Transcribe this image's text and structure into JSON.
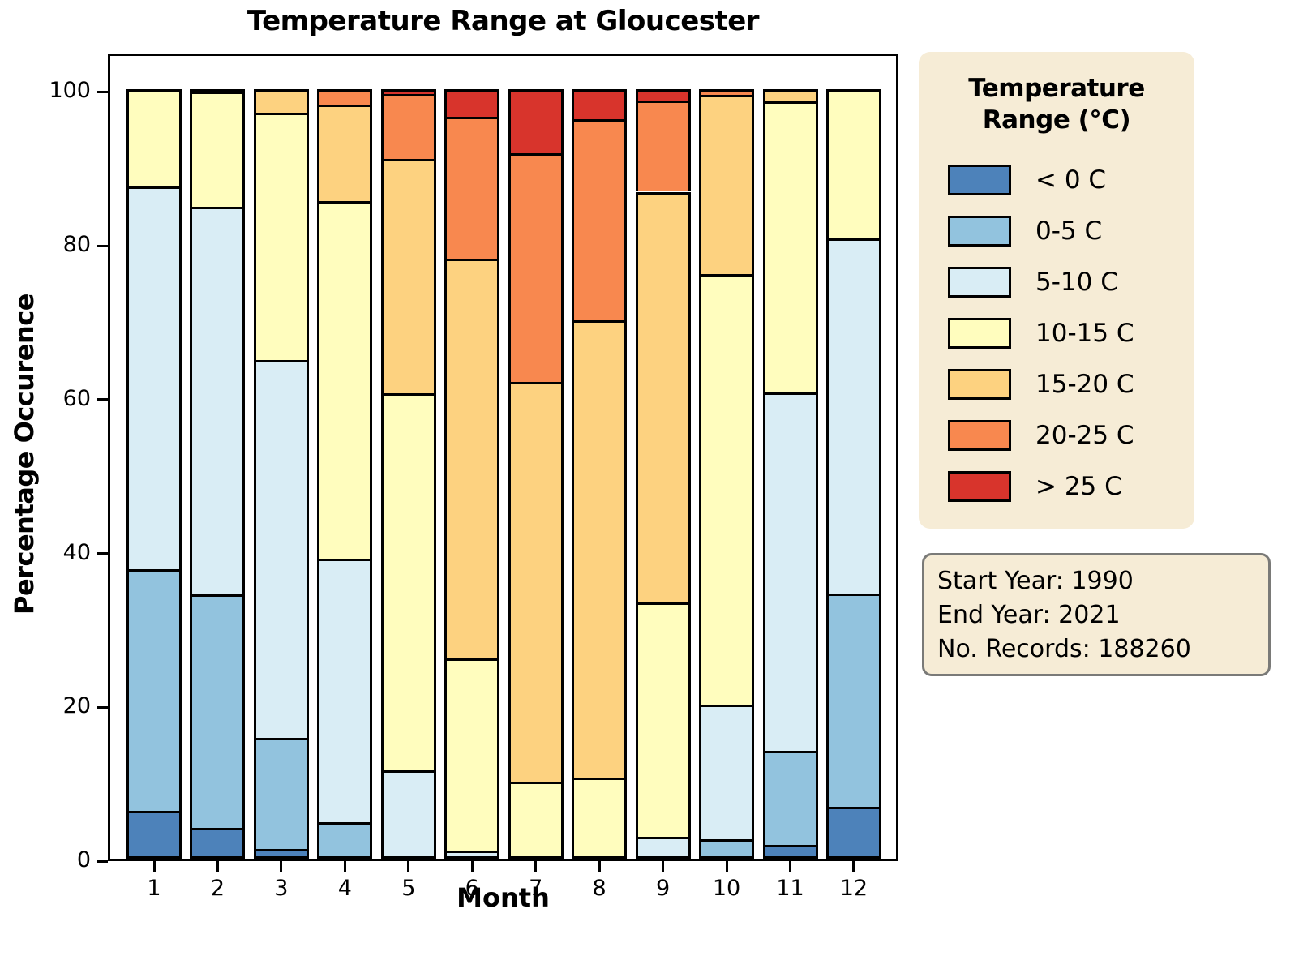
{
  "figure": {
    "background": "#ffffff",
    "box_background": "#f6ecd6",
    "edge_color": "#000000"
  },
  "chart_data": {
    "type": "bar",
    "stacked": true,
    "title": "Temperature Range at Gloucester",
    "xlabel": "Month",
    "ylabel": "Percentage Occurence",
    "ylim": [
      0,
      100
    ],
    "yticks": [
      0,
      20,
      40,
      60,
      80,
      100
    ],
    "grid": false,
    "legend_position": "right",
    "categories": [
      "1",
      "2",
      "3",
      "4",
      "5",
      "6",
      "7",
      "8",
      "9",
      "10",
      "11",
      "12"
    ],
    "series": [
      {
        "name": "< 0 C",
        "color": "#4d82ba",
        "values": [
          6.2,
          4.0,
          1.3,
          0,
          0,
          0,
          0,
          0,
          0,
          0,
          1.8,
          6.8
        ]
      },
      {
        "name": "0-5 C",
        "color": "#92c3de",
        "values": [
          31.4,
          30.4,
          14.4,
          4.7,
          0,
          0,
          0,
          0,
          0,
          2.5,
          12.2,
          27.7
        ]
      },
      {
        "name": "5-10 C",
        "color": "#d9edf5",
        "values": [
          49.8,
          50.3,
          49.1,
          34.3,
          11.5,
          1.1,
          0,
          0,
          2.9,
          17.5,
          46.6,
          46.1
        ]
      },
      {
        "name": "10-15 C",
        "color": "#fffdbe",
        "values": [
          12.6,
          15.0,
          32.2,
          46.5,
          49.0,
          24.9,
          10.0,
          10.5,
          30.4,
          56.0,
          37.9,
          19.4
        ]
      },
      {
        "name": "15-20 C",
        "color": "#fdd280",
        "values": [
          0,
          0.3,
          3.0,
          12.5,
          30.5,
          52.0,
          52.0,
          59.5,
          53.4,
          23.3,
          1.5,
          0
        ]
      },
      {
        "name": "20-25 C",
        "color": "#f8884f",
        "values": [
          0,
          0,
          0,
          2.0,
          8.4,
          18.5,
          29.7,
          26.1,
          11.9,
          0.7,
          0,
          0
        ]
      },
      {
        "name": "> 25 C",
        "color": "#d8342c",
        "values": [
          0,
          0,
          0,
          0,
          0.6,
          3.5,
          8.3,
          3.9,
          1.4,
          0,
          0,
          0
        ]
      }
    ]
  },
  "legend": {
    "title_lines": [
      "Temperature",
      "Range (°C)"
    ]
  },
  "info": {
    "lines": [
      "Start Year: 1990",
      "End Year: 2021",
      "No. Records: 188260"
    ]
  }
}
